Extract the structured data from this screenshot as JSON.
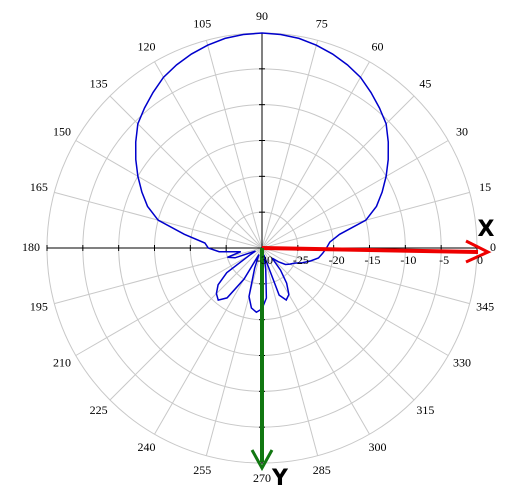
{
  "chart_data": {
    "type": "polar",
    "theta": [
      0,
      5,
      10,
      15,
      20,
      25,
      30,
      35,
      40,
      45,
      50,
      55,
      60,
      65,
      70,
      75,
      80,
      85,
      90,
      95,
      100,
      105,
      110,
      115,
      120,
      125,
      130,
      135,
      140,
      145,
      150,
      155,
      160,
      165,
      170,
      175,
      180,
      185,
      190,
      195,
      200,
      205,
      210,
      215,
      220,
      225,
      230,
      235,
      240,
      245,
      250,
      255,
      260,
      265,
      270,
      275,
      280,
      285,
      290,
      295,
      300,
      305,
      310,
      315,
      320,
      325,
      330,
      335,
      340,
      345,
      350,
      355
    ],
    "values": [
      -21,
      -20.5,
      -19,
      -15,
      -13,
      -11.5,
      -10,
      -8.5,
      -7,
      -5.5,
      -4.5,
      -3.5,
      -2.5,
      -1.8,
      -1.2,
      -0.7,
      -0.3,
      -0.1,
      0,
      -0.1,
      -0.3,
      -0.7,
      -1.2,
      -1.8,
      -2.5,
      -3.5,
      -4.5,
      -5.5,
      -7,
      -8.5,
      -10,
      -11.5,
      -13,
      -15,
      -19,
      -22,
      -22.5,
      -24,
      -27,
      -25,
      -26,
      -29,
      -28,
      -24,
      -22,
      -21,
      -20.5,
      -21.5,
      -25,
      -29,
      -27,
      -23,
      -21.5,
      -21,
      -21.5,
      -23,
      -27,
      -29,
      -23,
      -22,
      -22.5,
      -24,
      -26,
      -28,
      -27,
      -26,
      -25.5,
      -25,
      -24,
      -23,
      -22,
      -21.5
    ],
    "color": "#0000cc",
    "rlim": [
      -30,
      0
    ],
    "rticks": [
      -30,
      -25,
      -20,
      -15,
      -10,
      -5,
      0
    ],
    "thetaticks": [
      0,
      15,
      30,
      45,
      60,
      75,
      90,
      105,
      120,
      135,
      150,
      165,
      180,
      195,
      210,
      225,
      240,
      255,
      270,
      285,
      300,
      315,
      330,
      345
    ],
    "grid": true,
    "annotations": [
      {
        "text": "X",
        "color": "#ee0000"
      },
      {
        "text": "Y",
        "color": "#117711"
      }
    ]
  }
}
